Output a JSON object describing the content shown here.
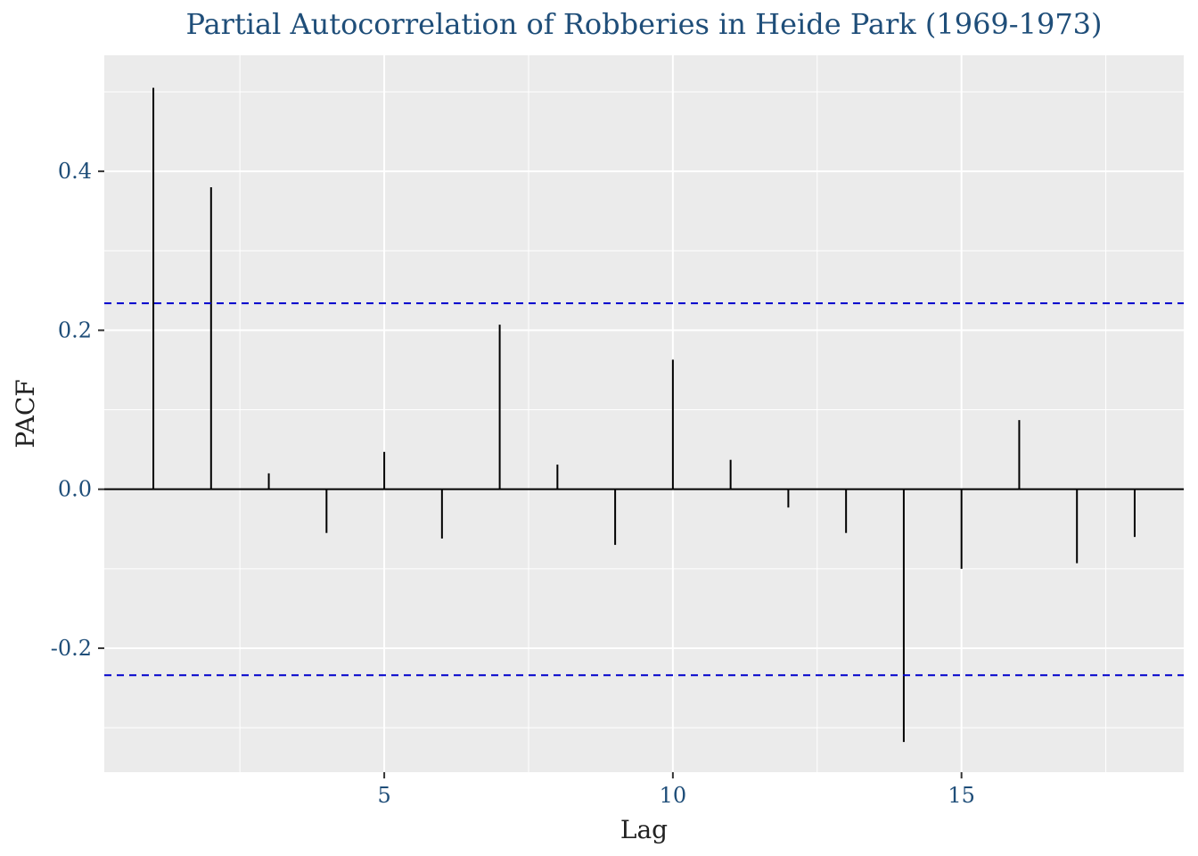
{
  "chart_data": {
    "type": "bar",
    "subtype": "pacf",
    "title": "Partial Autocorrelation of Robberies in Heide Park (1969-1973)",
    "xlabel": "Lag",
    "ylabel": "PACF",
    "x": [
      1,
      2,
      3,
      4,
      5,
      6,
      7,
      8,
      9,
      10,
      11,
      12,
      13,
      14,
      15,
      16,
      17,
      18
    ],
    "values": [
      0.505,
      0.38,
      0.02,
      -0.055,
      0.047,
      -0.062,
      0.207,
      0.031,
      -0.07,
      0.163,
      0.037,
      -0.023,
      -0.055,
      -0.318,
      -0.1,
      0.087,
      -0.093,
      -0.06
    ],
    "confidence_bound": 0.234,
    "xlim": [
      0.15,
      18.85
    ],
    "ylim": [
      -0.356,
      0.546
    ],
    "x_ticks": [
      5,
      10,
      15
    ],
    "x_tick_labels": [
      "5",
      "10",
      "15"
    ],
    "y_ticks": [
      -0.2,
      0.0,
      0.2,
      0.4
    ],
    "y_tick_labels": [
      "-0.2",
      "0.0",
      "0.2",
      "0.4"
    ],
    "grid": true,
    "colors": {
      "panel": "#ebebeb",
      "grid": "#ffffff",
      "spike": "#000000",
      "bound": "#0000cc",
      "title": "#1f4e79",
      "tick_label": "#1f4e79",
      "axis_title": "#222222"
    }
  }
}
